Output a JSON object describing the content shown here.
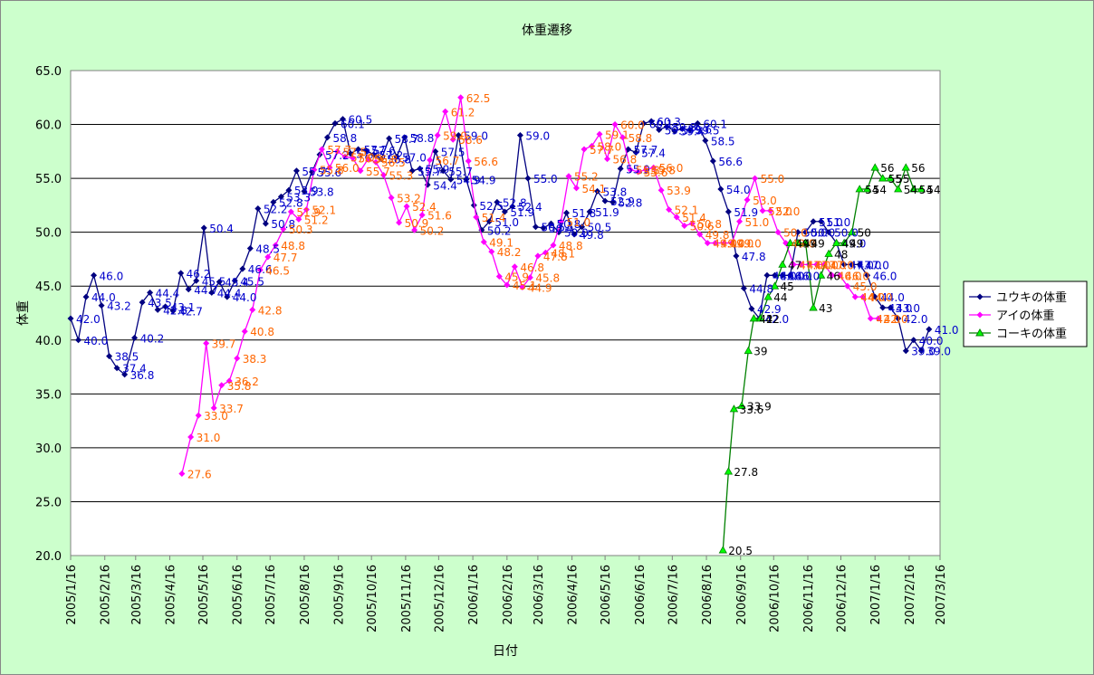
{
  "chart_data": {
    "type": "line",
    "title": "体重遷移",
    "xlabel": "日付",
    "ylabel": "体重",
    "ylim": [
      20,
      65
    ],
    "xlim": [
      "2005-01-16",
      "2007-03-16"
    ],
    "y_ticks": [
      "20.0",
      "25.0",
      "30.0",
      "35.0",
      "40.0",
      "45.0",
      "50.0",
      "55.0",
      "60.0",
      "65.0"
    ],
    "x_ticks": [
      "2005/1/16",
      "2005/2/16",
      "2005/3/16",
      "2005/4/16",
      "2005/5/16",
      "2005/6/16",
      "2005/7/16",
      "2005/8/16",
      "2005/9/16",
      "2005/10/16",
      "2005/11/16",
      "2005/12/16",
      "2006/1/16",
      "2006/2/16",
      "2006/3/16",
      "2006/4/16",
      "2006/5/16",
      "2006/6/16",
      "2006/7/16",
      "2006/8/16",
      "2006/9/16",
      "2006/10/16",
      "2006/11/16",
      "2006/12/16",
      "2007/1/16",
      "2007/2/16",
      "2007/3/16"
    ],
    "grid": "horizontal",
    "legend": "right",
    "series": [
      {
        "name": "ユウキの体重",
        "color": "#000080",
        "label_color": "#0000cc",
        "marker": "diamond",
        "points": [
          [
            "2005-01-16",
            42.0
          ],
          [
            "2005-01-23",
            40.0
          ],
          [
            "2005-01-30",
            44.0
          ],
          [
            "2005-02-06",
            46.0
          ],
          [
            "2005-02-13",
            43.2
          ],
          [
            "2005-02-20",
            38.5
          ],
          [
            "2005-02-27",
            37.4
          ],
          [
            "2005-03-06",
            36.8
          ],
          [
            "2005-03-15",
            40.2
          ],
          [
            "2005-03-22",
            43.5
          ],
          [
            "2005-03-29",
            44.4
          ],
          [
            "2005-04-05",
            42.8
          ],
          [
            "2005-04-12",
            43.1
          ],
          [
            "2005-04-19",
            42.7
          ],
          [
            "2005-04-26",
            46.2
          ],
          [
            "2005-05-03",
            44.7
          ],
          [
            "2005-05-10",
            45.5
          ],
          [
            "2005-05-17",
            50.4
          ],
          [
            "2005-05-24",
            44.4
          ],
          [
            "2005-05-31",
            45.4
          ],
          [
            "2005-06-07",
            44.0
          ],
          [
            "2005-06-14",
            45.5
          ],
          [
            "2005-06-21",
            46.6
          ],
          [
            "2005-06-28",
            48.5
          ],
          [
            "2005-07-05",
            52.2
          ],
          [
            "2005-07-12",
            50.8
          ],
          [
            "2005-07-19",
            52.8
          ],
          [
            "2005-07-26",
            53.3
          ],
          [
            "2005-08-02",
            53.9
          ],
          [
            "2005-08-09",
            55.7
          ],
          [
            "2005-08-16",
            53.8
          ],
          [
            "2005-08-23",
            55.6
          ],
          [
            "2005-08-30",
            57.2
          ],
          [
            "2005-09-06",
            58.8
          ],
          [
            "2005-09-13",
            60.1
          ],
          [
            "2005-09-20",
            60.5
          ],
          [
            "2005-09-27",
            57.3
          ],
          [
            "2005-10-04",
            57.7
          ],
          [
            "2005-10-11",
            57.6
          ],
          [
            "2005-10-18",
            57.2
          ],
          [
            "2005-10-25",
            56.8
          ],
          [
            "2005-11-01",
            58.7
          ],
          [
            "2005-11-08",
            57.0
          ],
          [
            "2005-11-15",
            58.8
          ],
          [
            "2005-11-22",
            55.7
          ],
          [
            "2005-11-29",
            55.9
          ],
          [
            "2005-12-06",
            54.4
          ],
          [
            "2005-12-13",
            57.5
          ],
          [
            "2005-12-20",
            55.7
          ],
          [
            "2005-12-27",
            54.9
          ],
          [
            "2006-01-03",
            59.0
          ],
          [
            "2006-01-10",
            54.9
          ],
          [
            "2006-01-17",
            52.5
          ],
          [
            "2006-01-24",
            50.2
          ],
          [
            "2006-01-31",
            51.0
          ],
          [
            "2006-02-07",
            52.8
          ],
          [
            "2006-02-14",
            51.9
          ],
          [
            "2006-02-21",
            52.4
          ],
          [
            "2006-02-28",
            59.0
          ],
          [
            "2006-03-07",
            55.0
          ],
          [
            "2006-03-14",
            50.5
          ],
          [
            "2006-03-21",
            50.4
          ],
          [
            "2006-03-28",
            50.8
          ],
          [
            "2006-04-04",
            50.0
          ],
          [
            "2006-04-11",
            51.8
          ],
          [
            "2006-04-18",
            49.8
          ],
          [
            "2006-04-25",
            50.5
          ],
          [
            "2006-05-02",
            51.9
          ],
          [
            "2006-05-09",
            53.8
          ],
          [
            "2006-05-16",
            52.9
          ],
          [
            "2006-05-23",
            52.8
          ],
          [
            "2006-05-30",
            55.9
          ],
          [
            "2006-06-06",
            57.7
          ],
          [
            "2006-06-13",
            57.4
          ],
          [
            "2006-06-20",
            60.1
          ],
          [
            "2006-06-27",
            60.3
          ],
          [
            "2006-07-04",
            59.5
          ],
          [
            "2006-07-11",
            59.8
          ],
          [
            "2006-07-18",
            59.4
          ],
          [
            "2006-07-25",
            59.6
          ],
          [
            "2006-08-01",
            59.5
          ],
          [
            "2006-08-08",
            60.1
          ],
          [
            "2006-08-15",
            58.5
          ],
          [
            "2006-08-22",
            56.6
          ],
          [
            "2006-08-29",
            54.0
          ],
          [
            "2006-09-05",
            51.9
          ],
          [
            "2006-09-12",
            47.8
          ],
          [
            "2006-09-19",
            44.8
          ],
          [
            "2006-09-26",
            42.9
          ],
          [
            "2006-10-03",
            42.0
          ],
          [
            "2006-10-10",
            46.0
          ],
          [
            "2006-10-17",
            46.0
          ],
          [
            "2006-10-24",
            46.0
          ],
          [
            "2006-10-31",
            46.0
          ],
          [
            "2006-11-07",
            50.0
          ],
          [
            "2006-11-14",
            50.0
          ],
          [
            "2006-11-21",
            51.0
          ],
          [
            "2006-11-28",
            51.0
          ],
          [
            "2006-12-05",
            50.0
          ],
          [
            "2006-12-12",
            49.0
          ],
          [
            "2006-12-19",
            47.0
          ],
          [
            "2006-12-26",
            47.0
          ],
          [
            "2007-01-02",
            47.0
          ],
          [
            "2007-01-09",
            46.0
          ],
          [
            "2007-01-16",
            44.0
          ],
          [
            "2007-01-23",
            43.0
          ],
          [
            "2007-01-30",
            43.0
          ],
          [
            "2007-02-06",
            42.0
          ],
          [
            "2007-02-13",
            39.0
          ],
          [
            "2007-02-20",
            40.0
          ],
          [
            "2007-02-27",
            39.0
          ],
          [
            "2007-03-06",
            41.0
          ]
        ]
      },
      {
        "name": "アイの体重",
        "color": "#ff00ff",
        "label_color": "#ff6600",
        "marker": "diamond",
        "points": [
          [
            "2005-04-27",
            27.6
          ],
          [
            "2005-05-05",
            31.0
          ],
          [
            "2005-05-12",
            33.0
          ],
          [
            "2005-05-19",
            39.7
          ],
          [
            "2005-05-26",
            33.7
          ],
          [
            "2005-06-02",
            35.8
          ],
          [
            "2005-06-09",
            36.2
          ],
          [
            "2005-06-16",
            38.3
          ],
          [
            "2005-06-23",
            40.8
          ],
          [
            "2005-06-30",
            42.8
          ],
          [
            "2005-07-07",
            46.5
          ],
          [
            "2005-07-14",
            47.7
          ],
          [
            "2005-07-21",
            48.8
          ],
          [
            "2005-07-28",
            50.3
          ],
          [
            "2005-08-04",
            51.9
          ],
          [
            "2005-08-11",
            51.2
          ],
          [
            "2005-08-18",
            52.1
          ],
          [
            "2005-08-25",
            55.8
          ],
          [
            "2005-09-01",
            57.7
          ],
          [
            "2005-09-08",
            56.0
          ],
          [
            "2005-09-15",
            57.5
          ],
          [
            "2005-09-22",
            57.0
          ],
          [
            "2005-09-29",
            56.9
          ],
          [
            "2005-10-06",
            55.7
          ],
          [
            "2005-10-13",
            56.8
          ],
          [
            "2005-10-20",
            56.5
          ],
          [
            "2005-10-27",
            55.3
          ],
          [
            "2005-11-03",
            53.2
          ],
          [
            "2005-11-10",
            50.9
          ],
          [
            "2005-11-17",
            52.4
          ],
          [
            "2005-11-24",
            50.2
          ],
          [
            "2005-12-01",
            51.6
          ],
          [
            "2005-12-08",
            56.7
          ],
          [
            "2005-12-15",
            59.0
          ],
          [
            "2005-12-22",
            61.2
          ],
          [
            "2005-12-29",
            58.6
          ],
          [
            "2006-01-05",
            62.5
          ],
          [
            "2006-01-12",
            56.6
          ],
          [
            "2006-01-19",
            51.4
          ],
          [
            "2006-01-26",
            49.1
          ],
          [
            "2006-02-02",
            48.2
          ],
          [
            "2006-02-09",
            45.9
          ],
          [
            "2006-02-16",
            45.1
          ],
          [
            "2006-02-23",
            46.8
          ],
          [
            "2006-03-02",
            44.9
          ],
          [
            "2006-03-09",
            45.8
          ],
          [
            "2006-03-16",
            47.8
          ],
          [
            "2006-03-23",
            48.1
          ],
          [
            "2006-03-30",
            48.8
          ],
          [
            "2006-04-06",
            51.0
          ],
          [
            "2006-04-13",
            55.2
          ],
          [
            "2006-04-20",
            54.1
          ],
          [
            "2006-04-27",
            57.7
          ],
          [
            "2006-05-04",
            58.0
          ],
          [
            "2006-05-11",
            59.1
          ],
          [
            "2006-05-18",
            56.8
          ],
          [
            "2006-05-25",
            60.0
          ],
          [
            "2006-06-01",
            58.8
          ],
          [
            "2006-06-08",
            55.8
          ],
          [
            "2006-06-15",
            55.6
          ],
          [
            "2006-06-22",
            55.8
          ],
          [
            "2006-06-29",
            56.0
          ],
          [
            "2006-07-06",
            53.9
          ],
          [
            "2006-07-13",
            52.1
          ],
          [
            "2006-07-20",
            51.4
          ],
          [
            "2006-07-27",
            50.6
          ],
          [
            "2006-08-03",
            50.8
          ],
          [
            "2006-08-10",
            49.8
          ],
          [
            "2006-08-17",
            49.0
          ],
          [
            "2006-08-24",
            49.0
          ],
          [
            "2006-09-01",
            49.0
          ],
          [
            "2006-09-08",
            49.0
          ],
          [
            "2006-09-15",
            51.0
          ],
          [
            "2006-09-22",
            53.0
          ],
          [
            "2006-09-29",
            55.0
          ],
          [
            "2006-10-06",
            52.0
          ],
          [
            "2006-10-13",
            52.0
          ],
          [
            "2006-10-20",
            50.0
          ],
          [
            "2006-10-27",
            49.0
          ],
          [
            "2006-11-03",
            47.0
          ],
          [
            "2006-11-10",
            47.0
          ],
          [
            "2006-11-17",
            47.0
          ],
          [
            "2006-11-24",
            47.0
          ],
          [
            "2006-12-01",
            47.0
          ],
          [
            "2006-12-08",
            46.0
          ],
          [
            "2006-12-15",
            46.0
          ],
          [
            "2006-12-22",
            45.0
          ],
          [
            "2006-12-29",
            44.0
          ],
          [
            "2007-01-05",
            44.0
          ],
          [
            "2007-01-12",
            42.0
          ],
          [
            "2007-01-19",
            42.0
          ]
        ]
      },
      {
        "name": "コーキの体重",
        "color": "#008000",
        "label_color": "#000000",
        "marker": "triangle",
        "points": [
          [
            "2006-08-31",
            20.5
          ],
          [
            "2006-09-05",
            27.8
          ],
          [
            "2006-09-10",
            33.6
          ],
          [
            "2006-09-17",
            33.9
          ],
          [
            "2006-09-23",
            39.0
          ],
          [
            "2006-09-28",
            42.0
          ],
          [
            "2006-10-04",
            42.0
          ],
          [
            "2006-10-11",
            44.0
          ],
          [
            "2006-10-17",
            45.0
          ],
          [
            "2006-10-24",
            47.0
          ],
          [
            "2006-10-31",
            49.0
          ],
          [
            "2006-11-07",
            49.0
          ],
          [
            "2006-11-14",
            49.0
          ],
          [
            "2006-11-21",
            43.0
          ],
          [
            "2006-11-28",
            46.0
          ],
          [
            "2006-12-05",
            48.0
          ],
          [
            "2006-12-12",
            49.0
          ],
          [
            "2006-12-19",
            49.0
          ],
          [
            "2006-12-26",
            50.0
          ],
          [
            "2007-01-02",
            54.0
          ],
          [
            "2007-01-09",
            54.0
          ],
          [
            "2007-01-16",
            56.0
          ],
          [
            "2007-01-23",
            55.0
          ],
          [
            "2007-01-30",
            55.0
          ],
          [
            "2007-02-06",
            54.0
          ],
          [
            "2007-02-13",
            56.0
          ],
          [
            "2007-02-20",
            54.0
          ],
          [
            "2007-02-27",
            54.0
          ]
        ]
      }
    ]
  }
}
